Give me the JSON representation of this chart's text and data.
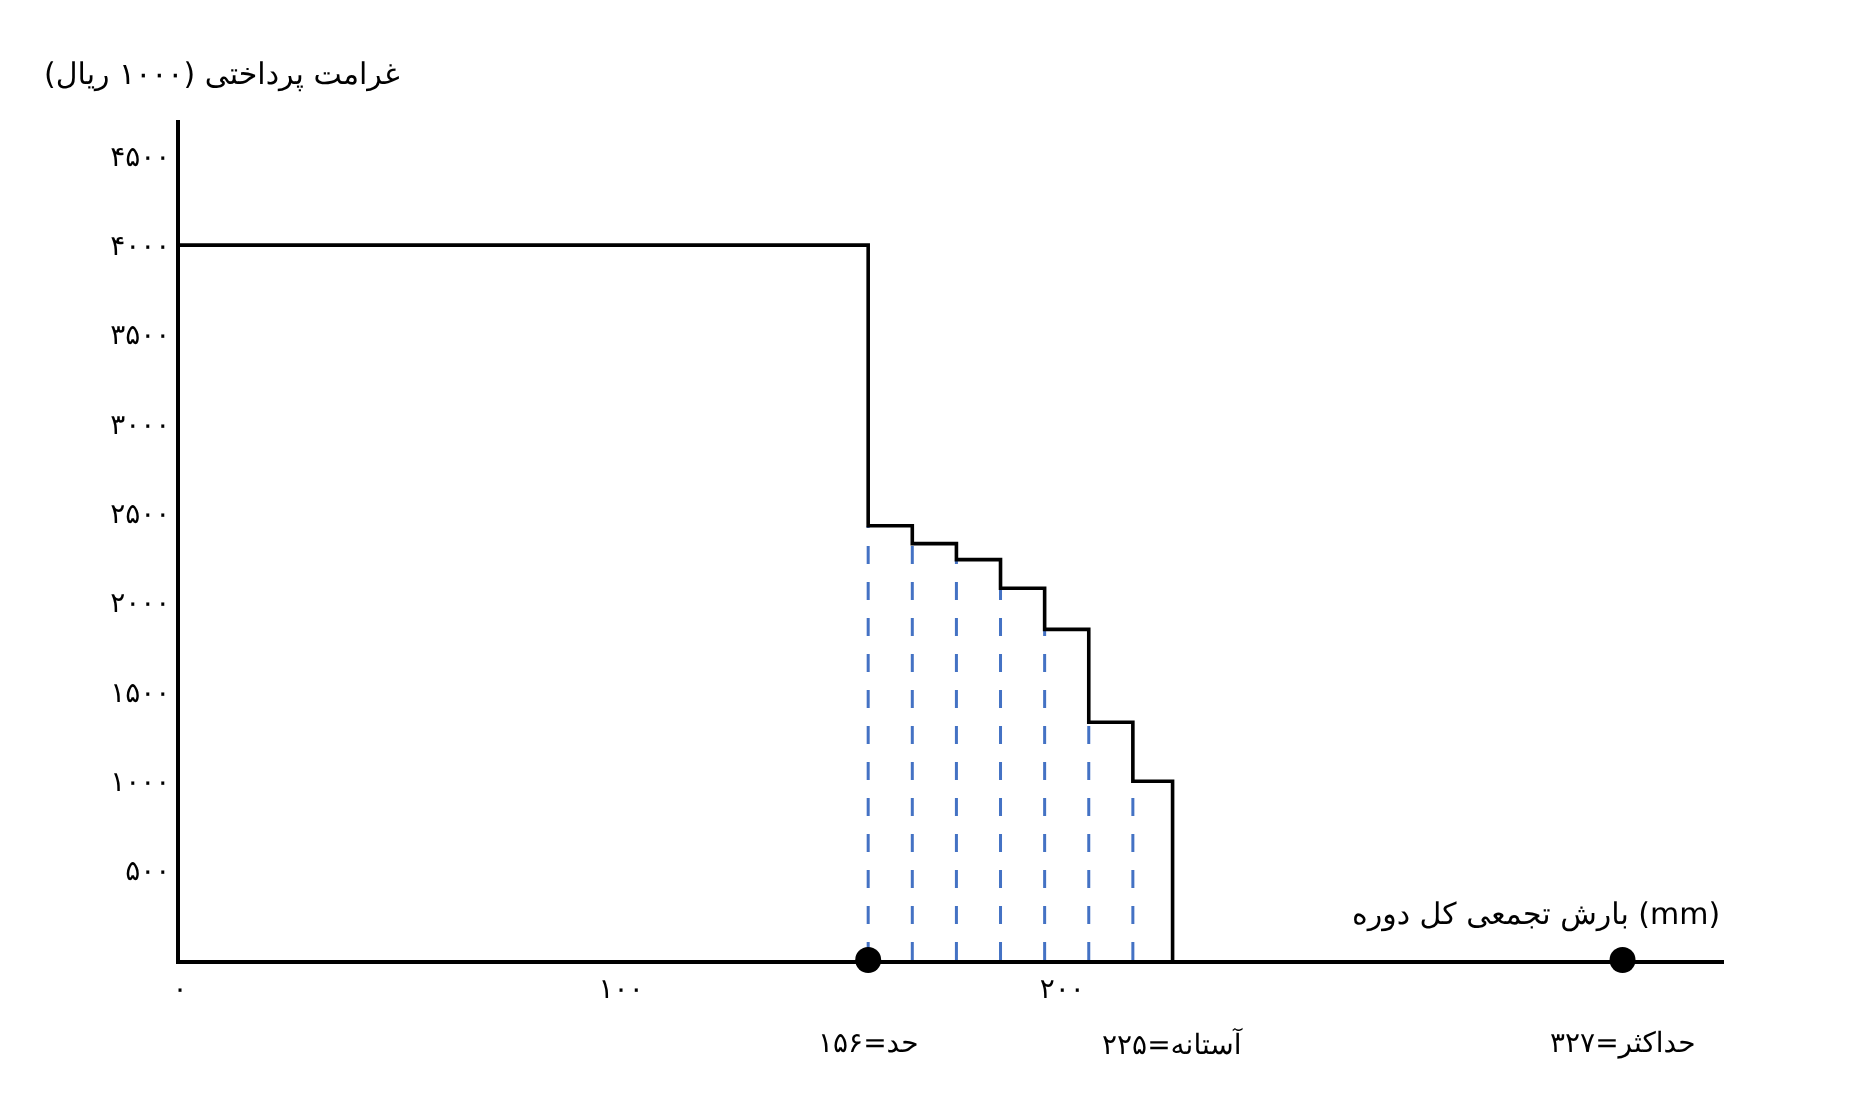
{
  "chart_data": {
    "type": "step",
    "xlabel": "بارش تجمعی کل دوره (mm)",
    "ylabel": "غرامت پرداختی (۱۰۰۰ ریال)",
    "x": [
      0,
      156,
      166,
      176,
      186,
      196,
      206,
      216,
      225
    ],
    "series": [
      {
        "type": "step",
        "color": "#000000",
        "marker": "none",
        "values": [
          4000,
          2430,
          2330,
          2240,
          2080,
          1850,
          1330,
          1000,
          0
        ]
      },
      {
        "type": "scatter",
        "color": "#000000",
        "marker": "circle",
        "x": [
          156,
          327
        ],
        "values": [
          0,
          0
        ]
      }
    ],
    "xlim": [
      0,
      350
    ],
    "ylim": [
      0,
      4700
    ],
    "xticks": [
      {
        "value": 0,
        "label": "۰"
      },
      {
        "value": 100,
        "label": "۱۰۰"
      },
      {
        "value": 200,
        "label": "۲۰۰"
      }
    ],
    "yticks": [
      {
        "value": 500,
        "label": "۵۰۰"
      },
      {
        "value": 1000,
        "label": "۱۰۰۰"
      },
      {
        "value": 1500,
        "label": "۱۵۰۰"
      },
      {
        "value": 2000,
        "label": "۲۰۰۰"
      },
      {
        "value": 2500,
        "label": "۲۵۰۰"
      },
      {
        "value": 3000,
        "label": "۳۰۰۰"
      },
      {
        "value": 3500,
        "label": "۳۵۰۰"
      },
      {
        "value": 4000,
        "label": "۴۰۰۰"
      },
      {
        "value": 4500,
        "label": "۴۵۰۰"
      }
    ],
    "ref_lines": [
      {
        "axis": "x",
        "value": 156,
        "color": "#4472c4",
        "line_style": "dashed"
      },
      {
        "axis": "x",
        "value": 166,
        "color": "#4472c4",
        "line_style": "dashed"
      },
      {
        "axis": "x",
        "value": 176,
        "color": "#4472c4",
        "line_style": "dashed"
      },
      {
        "axis": "x",
        "value": 186,
        "color": "#4472c4",
        "line_style": "dashed"
      },
      {
        "axis": "x",
        "value": 196,
        "color": "#4472c4",
        "line_style": "dashed"
      },
      {
        "axis": "x",
        "value": 206,
        "color": "#4472c4",
        "line_style": "dashed"
      },
      {
        "axis": "x",
        "value": 216,
        "color": "#4472c4",
        "line_style": "dashed"
      }
    ],
    "annotations": [
      {
        "text": "حد=۱۵۶",
        "x": 156,
        "y": 0
      },
      {
        "text": "آستانه=۲۲۵",
        "x": 225,
        "y": 0
      },
      {
        "text": "حداکثر=۳۲۷",
        "x": 327,
        "y": 0
      }
    ],
    "grid": false
  }
}
